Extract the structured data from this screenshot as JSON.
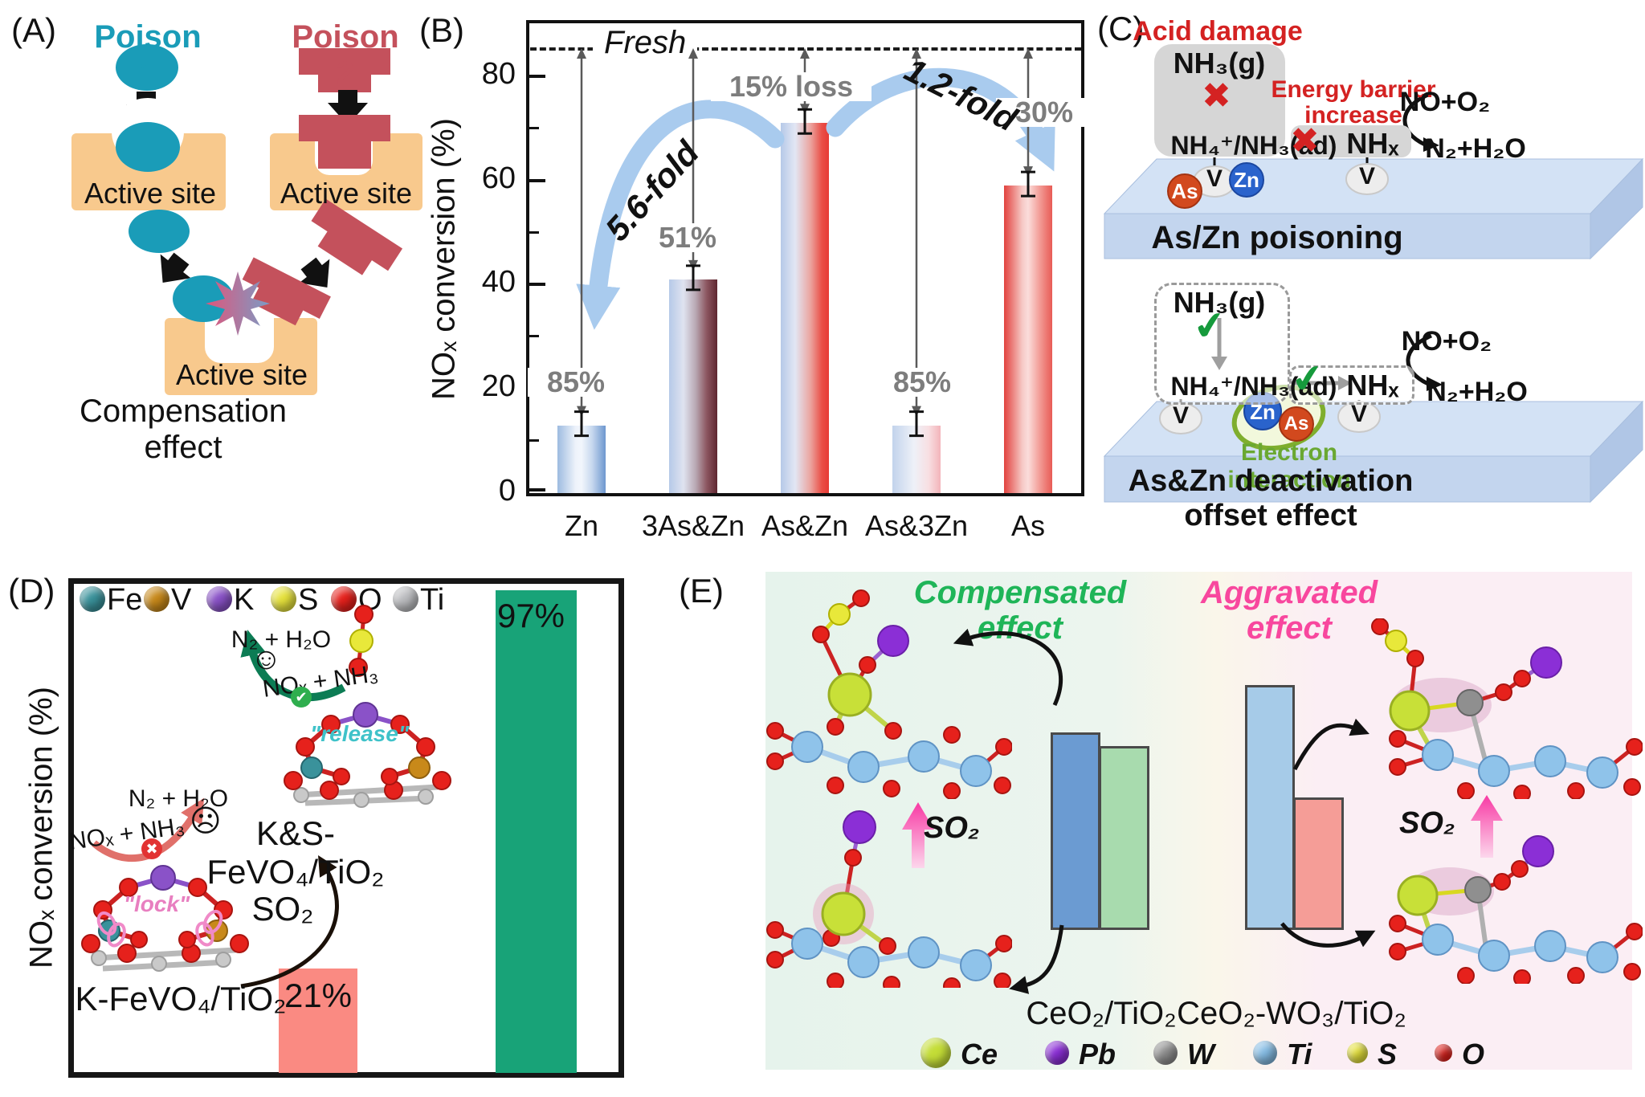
{
  "panelA": {
    "label": "(A)",
    "poison1": "Poison 1",
    "poison2": "Poison 2",
    "active_site": "Active site",
    "caption": "Compensation effect",
    "colors": {
      "poison1": "#1a9cb8",
      "poison2": "#c4515c",
      "active_site": "#f8c98d"
    }
  },
  "panelB": {
    "label": "(B)",
    "ylabel": "NOₓ conversion (%)",
    "fresh_label": "Fresh",
    "annotations": {
      "fold_left": "5.6-fold",
      "fold_right": "1.2-fold",
      "loss": "15% loss",
      "drop_zn": "85%",
      "drop_3aszn": "51%",
      "drop_as3zn": "85%",
      "drop_as": "30%"
    }
  },
  "panelC": {
    "label": "(C)",
    "acid_damage": "Acid damage",
    "nh3_g": "NH₃(g)",
    "nh4_nh3": "NH₄⁺/NH₃(ad)",
    "energy_barrier": "Energy barrier\nincrease",
    "nhx": "NHₓ",
    "no_o2": "NO+O₂",
    "n2_h2o": "N₂+H₂O",
    "as": "As",
    "zn": "Zn",
    "v": "V",
    "cross": "✖",
    "check": "✔",
    "slab1_title": "As/Zn poisoning",
    "electron_interaction": "Electron interaction",
    "slab2_title": "As&Zn deactivation offset effect"
  },
  "panelD": {
    "label": "(D)",
    "ylabel": "NOₓ conversion (%)",
    "legend": [
      {
        "symbol": "Fe",
        "color": "#3a929b"
      },
      {
        "symbol": "V",
        "color": "#c8891a"
      },
      {
        "symbol": "K",
        "color": "#8a52c8"
      },
      {
        "symbol": "S",
        "color": "#e6e23c"
      },
      {
        "symbol": "O",
        "color": "#e6211c"
      },
      {
        "symbol": "Ti",
        "color": "#bcbdc0"
      }
    ],
    "so2": "SO₂",
    "n2_h2o": "N₂ + H₂O",
    "nox_nh3": "NOₓ + NH₃",
    "lock": "\"lock\"",
    "release": "\"release\"",
    "sad_face": "☹",
    "happy_face": "☺",
    "check": "✔",
    "cross": "✖",
    "cat_poisoned": "K-FeVO₄/TiO₂",
    "cat_regenerated": "K&S-FeVO₄/TiO₂",
    "pct_poisoned": "21%",
    "pct_regenerated": "97%"
  },
  "panelE": {
    "label": "(E)",
    "compensated": "Compensated\neffect",
    "aggravated": "Aggravated\neffect",
    "so2": "SO₂",
    "cat_left": "CeO₂/TiO₂",
    "cat_right": "CeO₂-WO₃/TiO₂",
    "colors": {
      "compensated": "#1fb558",
      "aggravated": "#f8479e"
    },
    "legend": [
      {
        "symbol": "Ce",
        "color": "#c4dd37"
      },
      {
        "symbol": "Pb",
        "color": "#8b2fd6"
      },
      {
        "symbol": "W",
        "color": "#8f8f8f"
      },
      {
        "symbol": "Ti",
        "color": "#85bce4"
      },
      {
        "symbol": "S",
        "color": "#e6e23c"
      },
      {
        "symbol": "O",
        "color": "#e6211c"
      }
    ]
  },
  "chart_data": [
    {
      "panel": "B",
      "type": "bar",
      "categories": [
        "Zn",
        "3As&Zn",
        "As&Zn",
        "As&3Zn",
        "As"
      ],
      "values": [
        13,
        41,
        71,
        13,
        59
      ],
      "errors": [
        2,
        2,
        2,
        2,
        2
      ],
      "ylabel": "NOₓ conversion (%)",
      "ylim": [
        0,
        88
      ],
      "yticks": [
        0,
        20,
        40,
        60,
        80
      ],
      "reference_line": {
        "label": "Fresh",
        "value": 85
      },
      "annotations": {
        "Zn": "85%",
        "3As&Zn": "51%",
        "As&Zn": "15% loss",
        "As&3Zn": "85%",
        "As": "30%"
      },
      "fold_arrows": [
        "5.6-fold",
        "1.2-fold"
      ],
      "grid": false,
      "legend_position": "none"
    },
    {
      "panel": "D",
      "type": "bar",
      "categories": [
        "K-FeVO₄/TiO₂",
        "K&S-FeVO₄/TiO₂"
      ],
      "values": [
        21,
        97
      ],
      "value_labels": [
        "21%",
        "97%"
      ],
      "bar_colors": [
        "#fa8a82",
        "#18a378"
      ],
      "ylabel": "NOₓ conversion (%)"
    },
    {
      "panel": "E-left",
      "type": "bar",
      "title": "CeO₂/TiO₂",
      "categories": [
        "bar-1",
        "bar-2"
      ],
      "values": [
        100,
        93
      ],
      "unit": "relative height (estimated, no axis shown)",
      "bar_colors": [
        "#6b9bd2",
        "#a8dbae"
      ]
    },
    {
      "panel": "E-right",
      "type": "bar",
      "title": "CeO₂-WO₃/TiO₂",
      "categories": [
        "bar-1",
        "bar-2"
      ],
      "values": [
        100,
        54
      ],
      "unit": "relative height (estimated, no axis shown)",
      "bar_colors": [
        "#a6cbe8",
        "#f59d97"
      ]
    }
  ]
}
